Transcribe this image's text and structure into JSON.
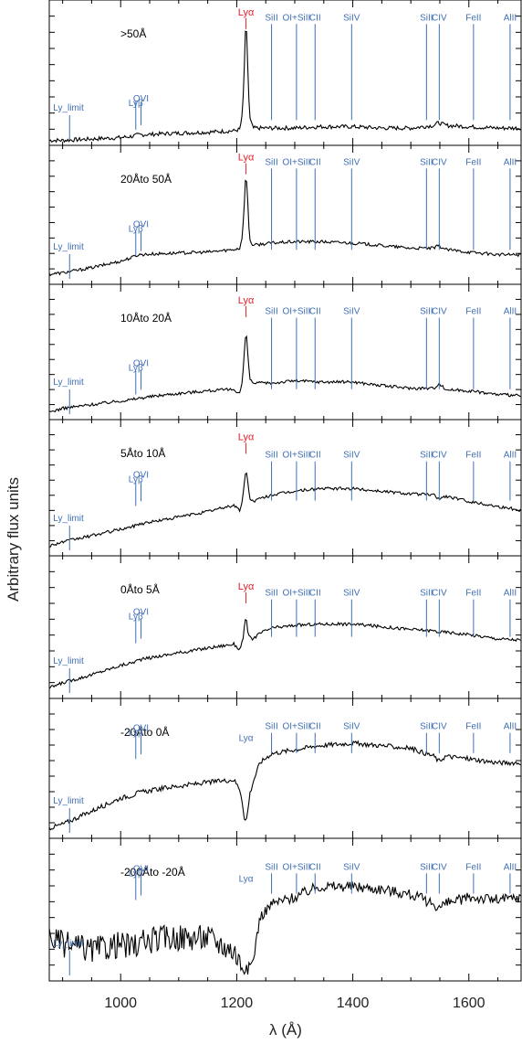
{
  "chart_data": {
    "type": "line",
    "xlabel": "λ (Å)",
    "ylabel": "Arbitrary flux units",
    "xlim": [
      877,
      1690
    ],
    "x_ticks": [
      1000,
      1200,
      1400,
      1600
    ],
    "ylim": [
      0,
      1
    ],
    "grid": false,
    "line_labels": [
      {
        "text": "Ly_limit",
        "x": 912,
        "kind": "blue"
      },
      {
        "text": "Lyβ",
        "x": 1026,
        "kind": "blue"
      },
      {
        "text": "OVI",
        "x": 1035,
        "kind": "blue"
      },
      {
        "text": "Lyα",
        "x": 1216,
        "kind": "red"
      },
      {
        "text": "SiII",
        "x": 1260,
        "kind": "blue"
      },
      {
        "text": "OI+SiII",
        "x": 1303,
        "kind": "blue"
      },
      {
        "text": "CII",
        "x": 1335,
        "kind": "blue"
      },
      {
        "text": "SiIV",
        "x": 1398,
        "kind": "blue"
      },
      {
        "text": "SiII",
        "x": 1527,
        "kind": "blue"
      },
      {
        "text": "CIV",
        "x": 1549,
        "kind": "blue"
      },
      {
        "text": "FeII",
        "x": 1608,
        "kind": "blue"
      },
      {
        "text": "AlII",
        "x": 1671,
        "kind": "blue"
      }
    ],
    "series": [
      {
        "name": ">50Å",
        "x": [
          877,
          900,
          950,
          1000,
          1020,
          1030,
          1080,
          1150,
          1195,
          1205,
          1210,
          1213,
          1216,
          1219,
          1222,
          1228,
          1240,
          1260,
          1300,
          1340,
          1400,
          1450,
          1500,
          1540,
          1548,
          1560,
          1600,
          1650,
          1690
        ],
        "y": [
          0.01,
          0.01,
          0.02,
          0.03,
          0.04,
          0.05,
          0.06,
          0.07,
          0.08,
          0.09,
          0.2,
          0.55,
          0.92,
          0.55,
          0.18,
          0.1,
          0.1,
          0.1,
          0.1,
          0.11,
          0.11,
          0.1,
          0.1,
          0.12,
          0.14,
          0.12,
          0.11,
          0.1,
          0.1
        ],
        "noise": 0.015,
        "label_y": 0.86,
        "tick_y": 0.12,
        "tick_len": 0.18,
        "lya_label_y": 0.97
      },
      {
        "name": "20Åto 50Å",
        "x": [
          877,
          900,
          950,
          1000,
          1020,
          1030,
          1080,
          1150,
          1195,
          1205,
          1210,
          1213,
          1216,
          1219,
          1222,
          1228,
          1240,
          1260,
          1300,
          1340,
          1400,
          1450,
          1500,
          1540,
          1548,
          1560,
          1600,
          1650,
          1690
        ],
        "y": [
          0.05,
          0.06,
          0.1,
          0.15,
          0.18,
          0.2,
          0.21,
          0.22,
          0.24,
          0.25,
          0.35,
          0.6,
          0.85,
          0.6,
          0.32,
          0.27,
          0.28,
          0.29,
          0.3,
          0.3,
          0.29,
          0.27,
          0.25,
          0.25,
          0.27,
          0.24,
          0.22,
          0.2,
          0.2
        ],
        "noise": 0.012,
        "label_y": 0.86,
        "tick_y": 0.22,
        "tick_len": 0.16,
        "lya_label_y": 0.97
      },
      {
        "name": "10Åto 20Å",
        "x": [
          877,
          900,
          950,
          1000,
          1020,
          1030,
          1080,
          1150,
          1195,
          1205,
          1210,
          1213,
          1216,
          1219,
          1222,
          1228,
          1240,
          1260,
          1300,
          1340,
          1400,
          1450,
          1500,
          1540,
          1548,
          1560,
          1600,
          1650,
          1690
        ],
        "y": [
          0.03,
          0.06,
          0.09,
          0.12,
          0.13,
          0.14,
          0.17,
          0.2,
          0.21,
          0.18,
          0.28,
          0.5,
          0.68,
          0.5,
          0.3,
          0.26,
          0.26,
          0.26,
          0.28,
          0.27,
          0.27,
          0.24,
          0.22,
          0.22,
          0.26,
          0.21,
          0.2,
          0.17,
          0.16
        ],
        "noise": 0.012,
        "label_y": 0.78,
        "tick_y": 0.2,
        "tick_len": 0.16,
        "lya_label_y": 0.94
      },
      {
        "name": "5Åto 10Å",
        "x": [
          877,
          900,
          950,
          1000,
          1020,
          1030,
          1080,
          1150,
          1195,
          1205,
          1210,
          1213,
          1216,
          1219,
          1222,
          1228,
          1240,
          1260,
          1300,
          1340,
          1400,
          1450,
          1500,
          1540,
          1548,
          1560,
          1600,
          1650,
          1690
        ],
        "y": [
          0.05,
          0.08,
          0.13,
          0.18,
          0.2,
          0.22,
          0.26,
          0.32,
          0.37,
          0.33,
          0.4,
          0.55,
          0.66,
          0.55,
          0.43,
          0.4,
          0.42,
          0.45,
          0.48,
          0.5,
          0.5,
          0.48,
          0.46,
          0.45,
          0.42,
          0.44,
          0.4,
          0.36,
          0.33
        ],
        "noise": 0.012,
        "label_y": 0.72,
        "tick_y": 0.38,
        "tick_len": 0.16,
        "lya_label_y": 0.93
      },
      {
        "name": "0Åto 5Å",
        "x": [
          877,
          900,
          950,
          1000,
          1020,
          1030,
          1080,
          1150,
          1195,
          1205,
          1210,
          1213,
          1216,
          1219,
          1222,
          1228,
          1240,
          1260,
          1300,
          1340,
          1400,
          1450,
          1500,
          1540,
          1548,
          1560,
          1600,
          1650,
          1690
        ],
        "y": [
          0.05,
          0.09,
          0.15,
          0.22,
          0.24,
          0.26,
          0.3,
          0.35,
          0.38,
          0.34,
          0.4,
          0.5,
          0.58,
          0.48,
          0.43,
          0.42,
          0.46,
          0.5,
          0.52,
          0.53,
          0.53,
          0.51,
          0.49,
          0.48,
          0.47,
          0.47,
          0.45,
          0.42,
          0.41
        ],
        "noise": 0.012,
        "label_y": 0.72,
        "tick_y": 0.4,
        "tick_len": 0.16,
        "lya_label_y": 0.84
      },
      {
        "name": "-20Åto 0Å",
        "x": [
          877,
          900,
          950,
          1000,
          1020,
          1030,
          1080,
          1150,
          1195,
          1205,
          1210,
          1213,
          1216,
          1219,
          1222,
          1228,
          1240,
          1260,
          1300,
          1340,
          1400,
          1450,
          1500,
          1540,
          1548,
          1560,
          1600,
          1650,
          1690
        ],
        "y": [
          0.05,
          0.08,
          0.18,
          0.28,
          0.3,
          0.32,
          0.36,
          0.4,
          0.42,
          0.35,
          0.25,
          0.12,
          0.1,
          0.18,
          0.3,
          0.4,
          0.55,
          0.62,
          0.65,
          0.68,
          0.7,
          0.68,
          0.66,
          0.6,
          0.56,
          0.6,
          0.58,
          0.55,
          0.55
        ],
        "noise": 0.018,
        "label_y": 0.78,
        "tick_y": 0.58,
        "tick_len": 0.16,
        "lya_label_y": null
      },
      {
        "name": "-200Åto -20Å",
        "x": [
          877,
          900,
          950,
          1000,
          1020,
          1030,
          1080,
          1150,
          1195,
          1205,
          1210,
          1213,
          1216,
          1219,
          1222,
          1228,
          1240,
          1260,
          1300,
          1340,
          1400,
          1450,
          1500,
          1540,
          1548,
          1560,
          1600,
          1650,
          1690
        ],
        "y": [
          0.3,
          0.25,
          0.2,
          0.25,
          0.22,
          0.25,
          0.3,
          0.3,
          0.2,
          0.12,
          0.08,
          0.06,
          0.05,
          0.06,
          0.08,
          0.12,
          0.45,
          0.55,
          0.6,
          0.68,
          0.68,
          0.66,
          0.62,
          0.55,
          0.52,
          0.55,
          0.6,
          0.58,
          0.6
        ],
        "noise": 0.04,
        "label_y": 0.78,
        "tick_y": 0.58,
        "tick_len": 0.16,
        "lya_label_y": null
      }
    ]
  }
}
